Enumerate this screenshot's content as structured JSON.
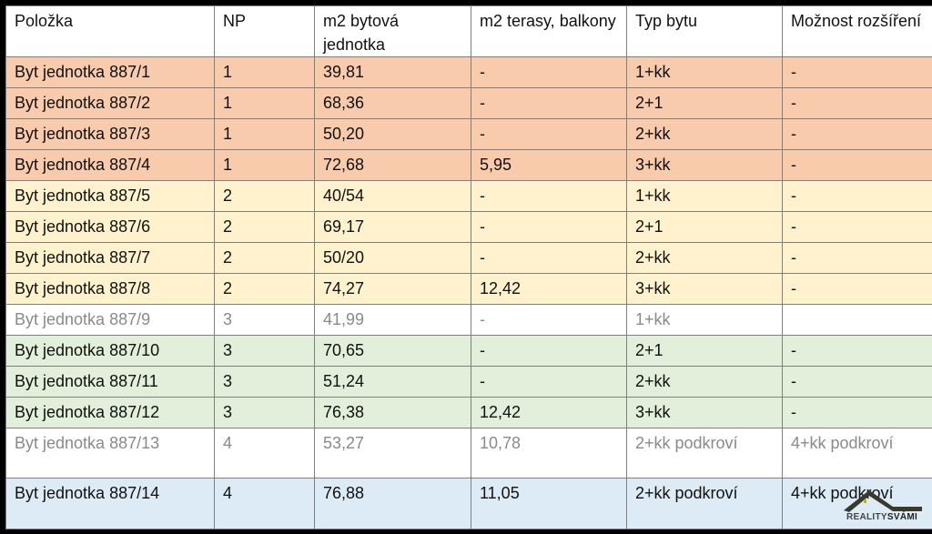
{
  "colors": {
    "floor1": "#f8cbad",
    "floor2": "#fff2cc",
    "floor3": "#e2efda",
    "floor4": "#ddebf7",
    "unavailable_text": "#8a8a8a"
  },
  "headers": [
    "Položka",
    "NP",
    "m2 bytová jednotka",
    "m2 terasy, balkony",
    "Typ bytu",
    "Možnost rozšíření"
  ],
  "rows": [
    {
      "cells": [
        "Byt jednotka 887/1",
        "1",
        "39,81",
        "-",
        "1+kk",
        "-"
      ],
      "style": "orange"
    },
    {
      "cells": [
        "Byt jednotka 887/2",
        "1",
        "68,36",
        "-",
        "2+1",
        "-"
      ],
      "style": "orange"
    },
    {
      "cells": [
        "Byt jednotka 887/3",
        "1",
        "50,20",
        "-",
        "2+kk",
        "-"
      ],
      "style": "orange"
    },
    {
      "cells": [
        "Byt jednotka 887/4",
        "1",
        "72,68",
        "5,95",
        "3+kk",
        "-"
      ],
      "style": "orange"
    },
    {
      "cells": [
        "Byt jednotka 887/5",
        "2",
        "40/54",
        "-",
        "1+kk",
        "-"
      ],
      "style": "yellow"
    },
    {
      "cells": [
        "Byt jednotka 887/6",
        "2",
        "69,17",
        "-",
        "2+1",
        "-"
      ],
      "style": "yellow"
    },
    {
      "cells": [
        "Byt jednotka 887/7",
        "2",
        "50/20",
        "-",
        "2+kk",
        "-"
      ],
      "style": "yellow"
    },
    {
      "cells": [
        "Byt jednotka 887/8",
        "2",
        "74,27",
        "12,42",
        "3+kk",
        "-"
      ],
      "style": "yellow"
    },
    {
      "cells": [
        "Byt jednotka 887/9",
        "3",
        "41,99",
        "-",
        "1+kk",
        ""
      ],
      "style": "white gray"
    },
    {
      "cells": [
        "Byt jednotka 887/10",
        "3",
        "70,65",
        "-",
        "2+1",
        "-"
      ],
      "style": "green"
    },
    {
      "cells": [
        "Byt jednotka 887/11",
        "3",
        "51,24",
        "-",
        "2+kk",
        "-"
      ],
      "style": "green"
    },
    {
      "cells": [
        "Byt jednotka 887/12",
        "3",
        "76,38",
        "12,42",
        "3+kk",
        "-"
      ],
      "style": "green"
    },
    {
      "cells": [
        "Byt jednotka 887/13",
        "4",
        "53,27",
        "10,78",
        "2+kk podkroví",
        "4+kk podkroví"
      ],
      "style": "white gray tall"
    },
    {
      "cells": [
        "Byt jednotka 887/14",
        "4",
        "76,88",
        "11,05",
        "2+kk podkroví",
        "4+kk podkroví"
      ],
      "style": "blue last"
    }
  ],
  "logo": {
    "text_a": "REALITY",
    "text_b": "SVÁMI"
  }
}
